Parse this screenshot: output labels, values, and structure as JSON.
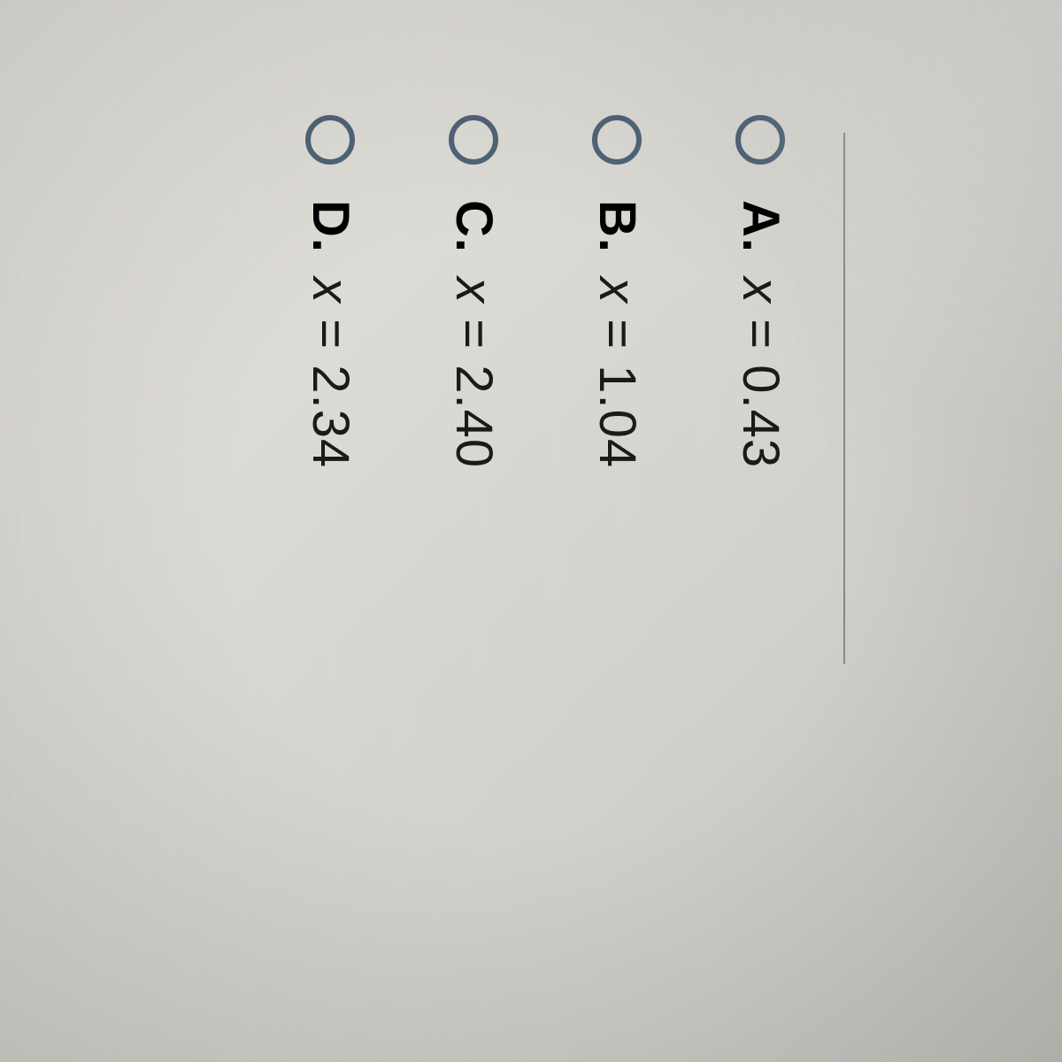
{
  "options": [
    {
      "letter": "A.",
      "variable": "x",
      "equals": "= 0.43"
    },
    {
      "letter": "B.",
      "variable": "x",
      "equals": "= 1.04"
    },
    {
      "letter": "C.",
      "variable": "x",
      "equals": "= 2.40"
    },
    {
      "letter": "D.",
      "variable": "x",
      "equals": "= 2.34"
    }
  ],
  "colors": {
    "radio_border": "#506478",
    "text": "#1a1a1a"
  }
}
